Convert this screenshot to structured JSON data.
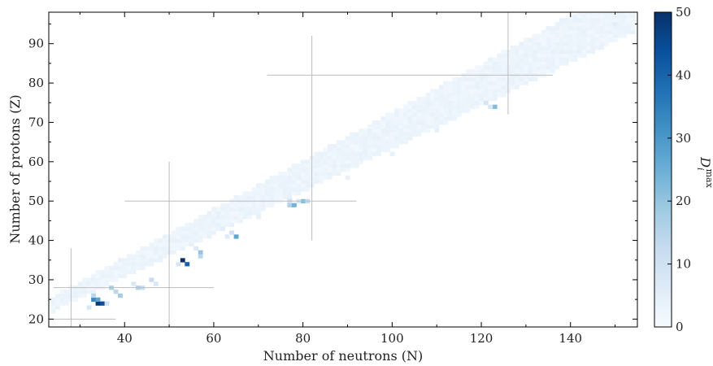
{
  "chart_data": {
    "type": "heatmap",
    "title": "",
    "xlabel": "Number of neutrons (N)",
    "ylabel": "Number of protons (Z)",
    "xlim": [
      23,
      155
    ],
    "ylim": [
      18,
      98
    ],
    "x_ticks": [
      "40",
      "60",
      "80",
      "100",
      "120",
      "140"
    ],
    "y_ticks": [
      "20",
      "30",
      "40",
      "50",
      "60",
      "70",
      "80",
      "90"
    ],
    "colorbar": {
      "label": "D",
      "label_subscript": "i",
      "label_superscript": "max",
      "range": [
        0,
        50
      ],
      "ticks": [
        "0",
        "10",
        "20",
        "30",
        "40",
        "50"
      ],
      "colormap": [
        "#f7fbff",
        "#deebf7",
        "#c6dbef",
        "#9ecae1",
        "#6baed6",
        "#4292c6",
        "#2171b5",
        "#08519c",
        "#08306b"
      ]
    },
    "band_base_value": 1.5,
    "magic_lines": [
      {
        "orientation": "horizontal",
        "at": 20,
        "from": 24,
        "to": 38
      },
      {
        "orientation": "vertical",
        "at": 28,
        "from": 18,
        "to": 38
      },
      {
        "orientation": "horizontal",
        "at": 28,
        "from": 24,
        "to": 60
      },
      {
        "orientation": "vertical",
        "at": 50,
        "from": 18,
        "to": 60
      },
      {
        "orientation": "horizontal",
        "at": 50,
        "from": 40,
        "to": 92
      },
      {
        "orientation": "vertical",
        "at": 82,
        "from": 40,
        "to": 92
      },
      {
        "orientation": "horizontal",
        "at": 82,
        "from": 72,
        "to": 136
      },
      {
        "orientation": "vertical",
        "at": 126,
        "from": 72,
        "to": 98
      }
    ],
    "points": [
      {
        "n": 34,
        "z": 24,
        "v": 48
      },
      {
        "n": 35,
        "z": 24,
        "v": 44
      },
      {
        "n": 33,
        "z": 25,
        "v": 33
      },
      {
        "n": 34,
        "z": 25,
        "v": 27
      },
      {
        "n": 33,
        "z": 26,
        "v": 14
      },
      {
        "n": 36,
        "z": 24,
        "v": 10
      },
      {
        "n": 32,
        "z": 23,
        "v": 8
      },
      {
        "n": 37,
        "z": 28,
        "v": 17
      },
      {
        "n": 38,
        "z": 27,
        "v": 14
      },
      {
        "n": 39,
        "z": 26,
        "v": 18
      },
      {
        "n": 43,
        "z": 28,
        "v": 16
      },
      {
        "n": 44,
        "z": 28,
        "v": 12
      },
      {
        "n": 42,
        "z": 29,
        "v": 8
      },
      {
        "n": 46,
        "z": 30,
        "v": 12
      },
      {
        "n": 47,
        "z": 29,
        "v": 8
      },
      {
        "n": 53,
        "z": 35,
        "v": 50
      },
      {
        "n": 54,
        "z": 34,
        "v": 40
      },
      {
        "n": 52,
        "z": 34,
        "v": 8
      },
      {
        "n": 57,
        "z": 37,
        "v": 20
      },
      {
        "n": 57,
        "z": 36,
        "v": 14
      },
      {
        "n": 56,
        "z": 38,
        "v": 7
      },
      {
        "n": 65,
        "z": 41,
        "v": 27
      },
      {
        "n": 64,
        "z": 42,
        "v": 10
      },
      {
        "n": 63,
        "z": 41,
        "v": 6
      },
      {
        "n": 77,
        "z": 49,
        "v": 16
      },
      {
        "n": 78,
        "z": 49,
        "v": 24
      },
      {
        "n": 77,
        "z": 50,
        "v": 10
      },
      {
        "n": 80,
        "z": 50,
        "v": 22
      },
      {
        "n": 81,
        "z": 50,
        "v": 13
      },
      {
        "n": 79,
        "z": 50,
        "v": 8
      },
      {
        "n": 121,
        "z": 75,
        "v": 9
      },
      {
        "n": 123,
        "z": 74,
        "v": 22
      },
      {
        "n": 122,
        "z": 74,
        "v": 8
      },
      {
        "n": 62,
        "z": 43,
        "v": 5
      },
      {
        "n": 70,
        "z": 46,
        "v": 4
      },
      {
        "n": 90,
        "z": 56,
        "v": 4
      },
      {
        "n": 100,
        "z": 62,
        "v": 4
      },
      {
        "n": 110,
        "z": 68,
        "v": 4
      },
      {
        "n": 138,
        "z": 88,
        "v": 4
      },
      {
        "n": 150,
        "z": 95,
        "v": 5
      }
    ]
  }
}
